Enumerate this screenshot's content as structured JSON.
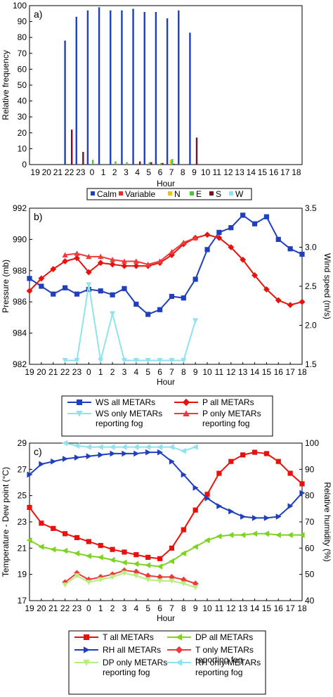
{
  "hour_labels": [
    "19",
    "20",
    "21",
    "22",
    "23",
    "0",
    "1",
    "2",
    "3",
    "4",
    "5",
    "6",
    "7",
    "8",
    "9",
    "10",
    "11",
    "12",
    "13",
    "14",
    "15",
    "16",
    "17",
    "18"
  ],
  "chart_data": [
    {
      "type": "bar",
      "panel_label": "a)",
      "xlabel": "Hour",
      "ylabel": "Relative frequency",
      "ylim": [
        0,
        100
      ],
      "yticks": [
        0,
        10,
        20,
        30,
        40,
        50,
        60,
        70,
        80,
        90,
        100
      ],
      "categories": [
        "19",
        "20",
        "21",
        "22",
        "23",
        "0",
        "1",
        "2",
        "3",
        "4",
        "5",
        "6",
        "7",
        "8",
        "9",
        "10",
        "11",
        "12",
        "13",
        "14",
        "15",
        "16",
        "17",
        "18"
      ],
      "series": [
        {
          "name": "Calm",
          "color": "#1f3fbf",
          "values": [
            0,
            0,
            0,
            78,
            93,
            97,
            99,
            97,
            97,
            98,
            96,
            96,
            92,
            97,
            83,
            0,
            0,
            0,
            0,
            0,
            0,
            0,
            0,
            0
          ]
        },
        {
          "name": "Variable",
          "color": "#ee2a2a",
          "values": [
            0,
            0,
            0,
            0,
            0,
            0,
            0,
            0,
            0,
            0,
            0,
            0,
            0,
            0,
            0,
            0,
            0,
            0,
            0,
            0,
            0,
            0,
            0,
            0
          ]
        },
        {
          "name": "N",
          "color": "#f2c200",
          "values": [
            0,
            0,
            0,
            0,
            0,
            0,
            0,
            0,
            0,
            0,
            0,
            0.5,
            3,
            0,
            0,
            0,
            0,
            0,
            0,
            0,
            0,
            0,
            0,
            0
          ]
        },
        {
          "name": "E",
          "color": "#4cc33a",
          "values": [
            0,
            0,
            0,
            0,
            0,
            3,
            0.5,
            2,
            1.5,
            0.5,
            1.5,
            1,
            3.5,
            0,
            0,
            0,
            0,
            0,
            0,
            0,
            0,
            0,
            0,
            0
          ]
        },
        {
          "name": "S",
          "color": "#7a0f1f",
          "values": [
            0,
            0,
            0,
            22,
            8,
            0,
            0,
            0,
            0,
            2,
            1.5,
            1,
            0.5,
            0,
            17,
            0,
            0,
            0,
            0,
            0,
            0,
            0,
            0,
            0
          ]
        },
        {
          "name": "W",
          "color": "#8fe3ee",
          "values": [
            0,
            0,
            0,
            0,
            0,
            0,
            0,
            0,
            0,
            0,
            0,
            0,
            0,
            0,
            0,
            0,
            0,
            0,
            0,
            0,
            0,
            0,
            0,
            0
          ]
        }
      ]
    },
    {
      "type": "line",
      "panel_label": "b)",
      "xlabel": "Hour",
      "ylabel": "Pressure (mb)",
      "ylabel_right": "Wind speed (m/s)",
      "ylim": [
        982,
        992
      ],
      "ylim_right": [
        1.5,
        3.5
      ],
      "yticks": [
        "982",
        "984",
        "986",
        "988",
        "990",
        "992"
      ],
      "yticks_right": [
        "1.5",
        "2.0",
        "2.5",
        "3.0",
        "3.5"
      ],
      "categories": [
        "19",
        "20",
        "21",
        "22",
        "23",
        "0",
        "1",
        "2",
        "3",
        "4",
        "5",
        "6",
        "7",
        "8",
        "9",
        "10",
        "11",
        "12",
        "13",
        "14",
        "15",
        "16",
        "17",
        "18"
      ],
      "series": [
        {
          "name": "WS all METARs",
          "axis": "right",
          "color": "#1f3fbf",
          "marker": "square",
          "values": [
            2.6,
            2.5,
            2.4,
            2.48,
            2.4,
            2.46,
            2.44,
            2.39,
            2.47,
            2.27,
            2.14,
            2.2,
            2.37,
            2.35,
            2.59,
            2.97,
            3.19,
            3.25,
            3.41,
            3.3,
            3.39,
            3.1,
            2.98,
            2.91
          ]
        },
        {
          "name": "WS only METARs reporting fog",
          "axis": "right",
          "color": "#8fe3ee",
          "marker": "triangle-down",
          "values": [
            null,
            null,
            null,
            1.55,
            1.55,
            2.52,
            1.55,
            2.15,
            1.55,
            1.55,
            1.55,
            1.55,
            1.55,
            1.55,
            2.06,
            null,
            null,
            null,
            null,
            null,
            null,
            null,
            null,
            null
          ]
        },
        {
          "name": "P all METARs",
          "axis": "left",
          "color": "#e8120c",
          "marker": "diamond",
          "values": [
            986.7,
            987.5,
            988.1,
            988.6,
            988.8,
            987.9,
            988.5,
            988.4,
            988.3,
            988.3,
            988.3,
            988.5,
            989.0,
            989.7,
            990.1,
            990.3,
            990.1,
            989.5,
            988.7,
            987.7,
            986.8,
            986.1,
            985.8,
            986.0
          ]
        },
        {
          "name": "P only METARs reporting fog",
          "axis": "left",
          "color": "#ee3a3a",
          "marker": "triangle-up",
          "values": [
            null,
            null,
            null,
            989.0,
            989.1,
            988.9,
            988.9,
            988.7,
            988.6,
            988.6,
            988.4,
            988.6,
            989.2,
            989.8,
            990.1,
            null,
            null,
            null,
            null,
            null,
            null,
            null,
            null,
            null
          ]
        }
      ],
      "legend": [
        [
          "WS all METARs"
        ],
        [
          "P all METARs"
        ],
        [
          "WS only METARs",
          "reporting fog"
        ],
        [
          "P only METARs",
          "reporting fog"
        ]
      ]
    },
    {
      "type": "line",
      "panel_label": "c)",
      "xlabel": "Hour",
      "ylabel": "Temperature - Dew point (°C)",
      "ylabel_right": "Relative humidity (%)",
      "ylim": [
        17,
        29
      ],
      "ylim_right": [
        40,
        100
      ],
      "yticks": [
        "17",
        "19",
        "21",
        "23",
        "25",
        "27",
        "29"
      ],
      "yticks_right": [
        "40",
        "50",
        "60",
        "70",
        "80",
        "90",
        "100"
      ],
      "categories": [
        "19",
        "20",
        "21",
        "22",
        "23",
        "0",
        "1",
        "2",
        "3",
        "4",
        "5",
        "6",
        "7",
        "8",
        "9",
        "10",
        "11",
        "12",
        "13",
        "14",
        "15",
        "16",
        "17",
        "18"
      ],
      "series": [
        {
          "name": "T all METARs",
          "axis": "left",
          "color": "#e8120c",
          "marker": "square",
          "values": [
            24.1,
            22.9,
            22.5,
            22.1,
            21.8,
            21.5,
            21.2,
            20.9,
            20.7,
            20.5,
            20.3,
            20.2,
            21.0,
            22.4,
            23.9,
            25.1,
            26.7,
            27.6,
            28.1,
            28.3,
            28.2,
            27.6,
            26.7,
            25.9
          ]
        },
        {
          "name": "RH all METARs",
          "axis": "right",
          "color": "#1f3fbf",
          "marker": "triangle-right",
          "values": [
            88,
            92,
            93,
            94,
            94.5,
            95,
            95.5,
            96,
            96,
            96,
            96.5,
            96.5,
            93,
            88,
            83,
            79,
            76,
            74,
            72,
            71.5,
            71.5,
            72,
            76,
            81
          ]
        },
        {
          "name": "DP all METARs",
          "axis": "left",
          "color": "#7ed321",
          "marker": "triangle-left",
          "values": [
            21.6,
            21.1,
            20.9,
            20.8,
            20.6,
            20.4,
            20.3,
            20.1,
            19.9,
            19.8,
            19.7,
            19.6,
            20.0,
            20.6,
            21.1,
            21.6,
            21.9,
            22.0,
            22.0,
            22.1,
            22.1,
            22.0,
            22.0,
            22.0
          ]
        },
        {
          "name": "T only METARs reporting fog",
          "axis": "left",
          "color": "#ee3a3a",
          "marker": "diamond",
          "values": [
            null,
            null,
            null,
            18.4,
            19.1,
            18.6,
            18.8,
            19.0,
            19.3,
            19.2,
            18.9,
            18.8,
            18.8,
            18.6,
            18.3,
            null,
            null,
            null,
            null,
            null,
            null,
            null,
            null,
            null
          ]
        },
        {
          "name": "DP only METARs reporting fog",
          "axis": "left",
          "color": "#b7ee7d",
          "marker": "triangle-down",
          "values": [
            null,
            null,
            null,
            18.2,
            18.9,
            18.4,
            18.6,
            18.8,
            19.1,
            18.9,
            18.6,
            18.5,
            18.5,
            18.3,
            18.0,
            null,
            null,
            null,
            null,
            null,
            null,
            null,
            null,
            null
          ]
        },
        {
          "name": "RH only METARs reporting fog",
          "axis": "right",
          "color": "#8fe3ee",
          "marker": "triangle-left",
          "values": [
            null,
            null,
            null,
            100,
            99,
            98.5,
            98.5,
            98.5,
            98.5,
            98.5,
            98.5,
            98.5,
            98.5,
            97,
            98.5,
            null,
            null,
            null,
            null,
            null,
            null,
            null,
            null,
            null
          ]
        }
      ],
      "legend": [
        [
          "T all METARs"
        ],
        [
          "DP all METARs"
        ],
        [
          "RH all METARs"
        ],
        [
          "T only METARs",
          "reporting fog"
        ],
        [
          "DP only METARs",
          "reporting fog"
        ],
        [
          "RH only METARs",
          "reporting fog"
        ]
      ]
    }
  ]
}
